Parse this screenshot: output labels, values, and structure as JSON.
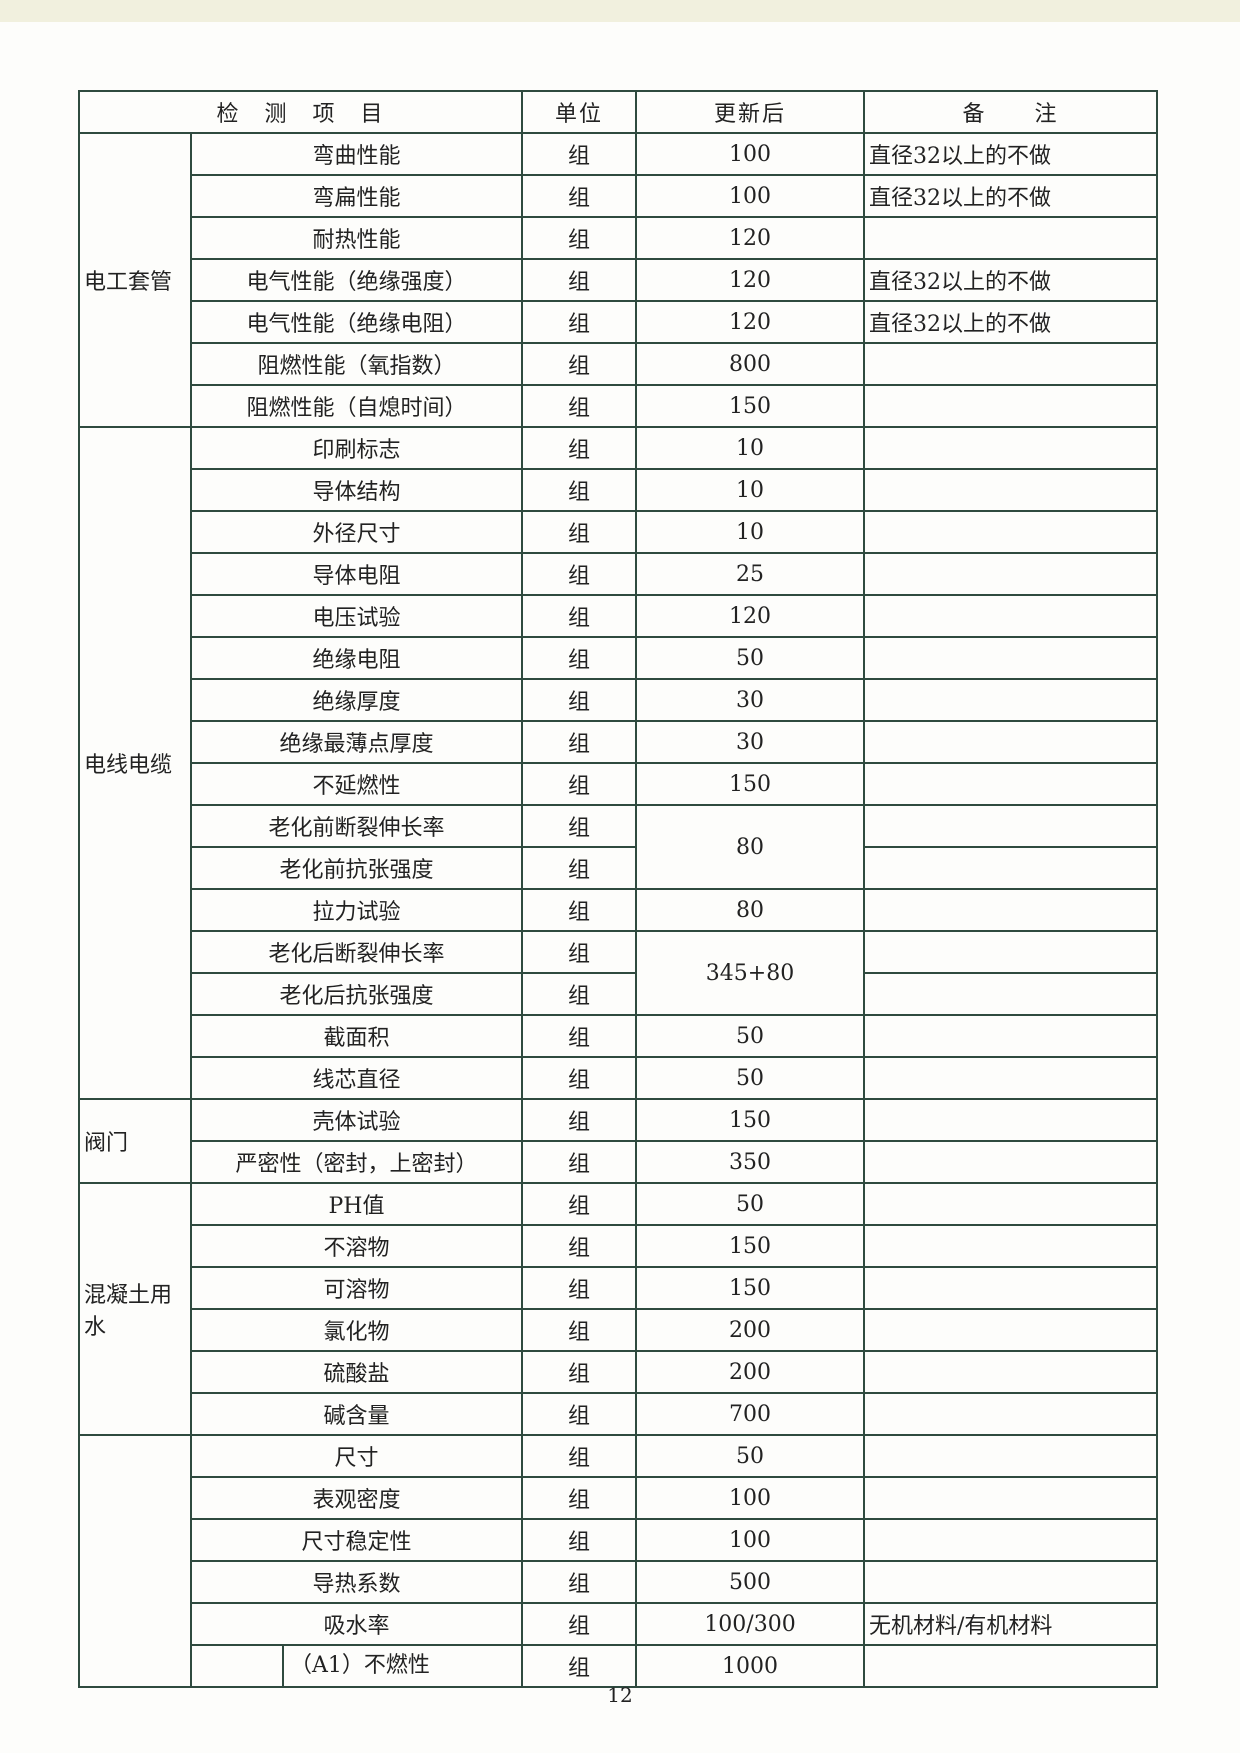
{
  "header": {
    "item": "检　测　项　目",
    "unit": "单位",
    "updated": "更新后",
    "remark": "备　　注"
  },
  "groups": [
    {
      "category": "电工套管",
      "rows": [
        {
          "item": "弯曲性能",
          "unit": "组",
          "value": "100",
          "remark": "直径32以上的不做"
        },
        {
          "item": "弯扁性能",
          "unit": "组",
          "value": "100",
          "remark": "直径32以上的不做"
        },
        {
          "item": "耐热性能",
          "unit": "组",
          "value": "120",
          "remark": ""
        },
        {
          "item": "电气性能（绝缘强度）",
          "unit": "组",
          "value": "120",
          "remark": "直径32以上的不做"
        },
        {
          "item": "电气性能（绝缘电阻）",
          "unit": "组",
          "value": "120",
          "remark": "直径32以上的不做"
        },
        {
          "item": "阻燃性能（氧指数）",
          "unit": "组",
          "value": "800",
          "remark": ""
        },
        {
          "item": "阻燃性能（自熄时间）",
          "unit": "组",
          "value": "150",
          "remark": ""
        }
      ]
    },
    {
      "category": "电线电缆",
      "rows": [
        {
          "item": "印刷标志",
          "unit": "组",
          "value": "10",
          "remark": ""
        },
        {
          "item": "导体结构",
          "unit": "组",
          "value": "10",
          "remark": ""
        },
        {
          "item": "外径尺寸",
          "unit": "组",
          "value": "10",
          "remark": ""
        },
        {
          "item": "导体电阻",
          "unit": "组",
          "value": "25",
          "remark": ""
        },
        {
          "item": "电压试验",
          "unit": "组",
          "value": "120",
          "remark": ""
        },
        {
          "item": "绝缘电阻",
          "unit": "组",
          "value": "50",
          "remark": ""
        },
        {
          "item": "绝缘厚度",
          "unit": "组",
          "value": "30",
          "remark": ""
        },
        {
          "item": "绝缘最薄点厚度",
          "unit": "组",
          "value": "30",
          "remark": ""
        },
        {
          "item": "不延燃性",
          "unit": "组",
          "value": "150",
          "remark": ""
        },
        {
          "item": "老化前断裂伸长率",
          "unit": "组",
          "value": "80",
          "value_rowspan": 2,
          "remark": ""
        },
        {
          "item": "老化前抗张强度",
          "unit": "组",
          "remark": ""
        },
        {
          "item": "拉力试验",
          "unit": "组",
          "value": "80",
          "remark": ""
        },
        {
          "item": "老化后断裂伸长率",
          "unit": "组",
          "value": "345+80",
          "value_rowspan": 2,
          "remark": ""
        },
        {
          "item": "老化后抗张强度",
          "unit": "组",
          "remark": ""
        },
        {
          "item": "截面积",
          "unit": "组",
          "value": "50",
          "remark": ""
        },
        {
          "item": "线芯直径",
          "unit": "组",
          "value": "50",
          "remark": ""
        }
      ]
    },
    {
      "category": "阀门",
      "rows": [
        {
          "item": "壳体试验",
          "unit": "组",
          "value": "150",
          "remark": ""
        },
        {
          "item": "严密性（密封，上密封）",
          "unit": "组",
          "value": "350",
          "remark": ""
        }
      ]
    },
    {
      "category": "混凝土用水",
      "rows": [
        {
          "item": "PH值",
          "unit": "组",
          "value": "50",
          "remark": ""
        },
        {
          "item": "不溶物",
          "unit": "组",
          "value": "150",
          "remark": ""
        },
        {
          "item": "可溶物",
          "unit": "组",
          "value": "150",
          "remark": ""
        },
        {
          "item": "氯化物",
          "unit": "组",
          "value": "200",
          "remark": ""
        },
        {
          "item": "硫酸盐",
          "unit": "组",
          "value": "200",
          "remark": ""
        },
        {
          "item": "碱含量",
          "unit": "组",
          "value": "700",
          "remark": ""
        }
      ]
    },
    {
      "category": "",
      "rows": [
        {
          "item": "尺寸",
          "unit": "组",
          "value": "50",
          "remark": ""
        },
        {
          "item": "表观密度",
          "unit": "组",
          "value": "100",
          "remark": ""
        },
        {
          "item": "尺寸稳定性",
          "unit": "组",
          "value": "100",
          "remark": ""
        },
        {
          "item": "导热系数",
          "unit": "组",
          "value": "500",
          "remark": ""
        },
        {
          "item": "吸水率",
          "unit": "组",
          "value": "100/300",
          "remark": "无机材料/有机材料"
        },
        {
          "item": "（A1）不燃性",
          "unit": "组",
          "value": "1000",
          "remark": "",
          "indented": true
        }
      ]
    }
  ],
  "page_number": "12",
  "colors": {
    "rule": "#2f4a3f",
    "text": "#222222",
    "paper": "#fdfdfb"
  }
}
